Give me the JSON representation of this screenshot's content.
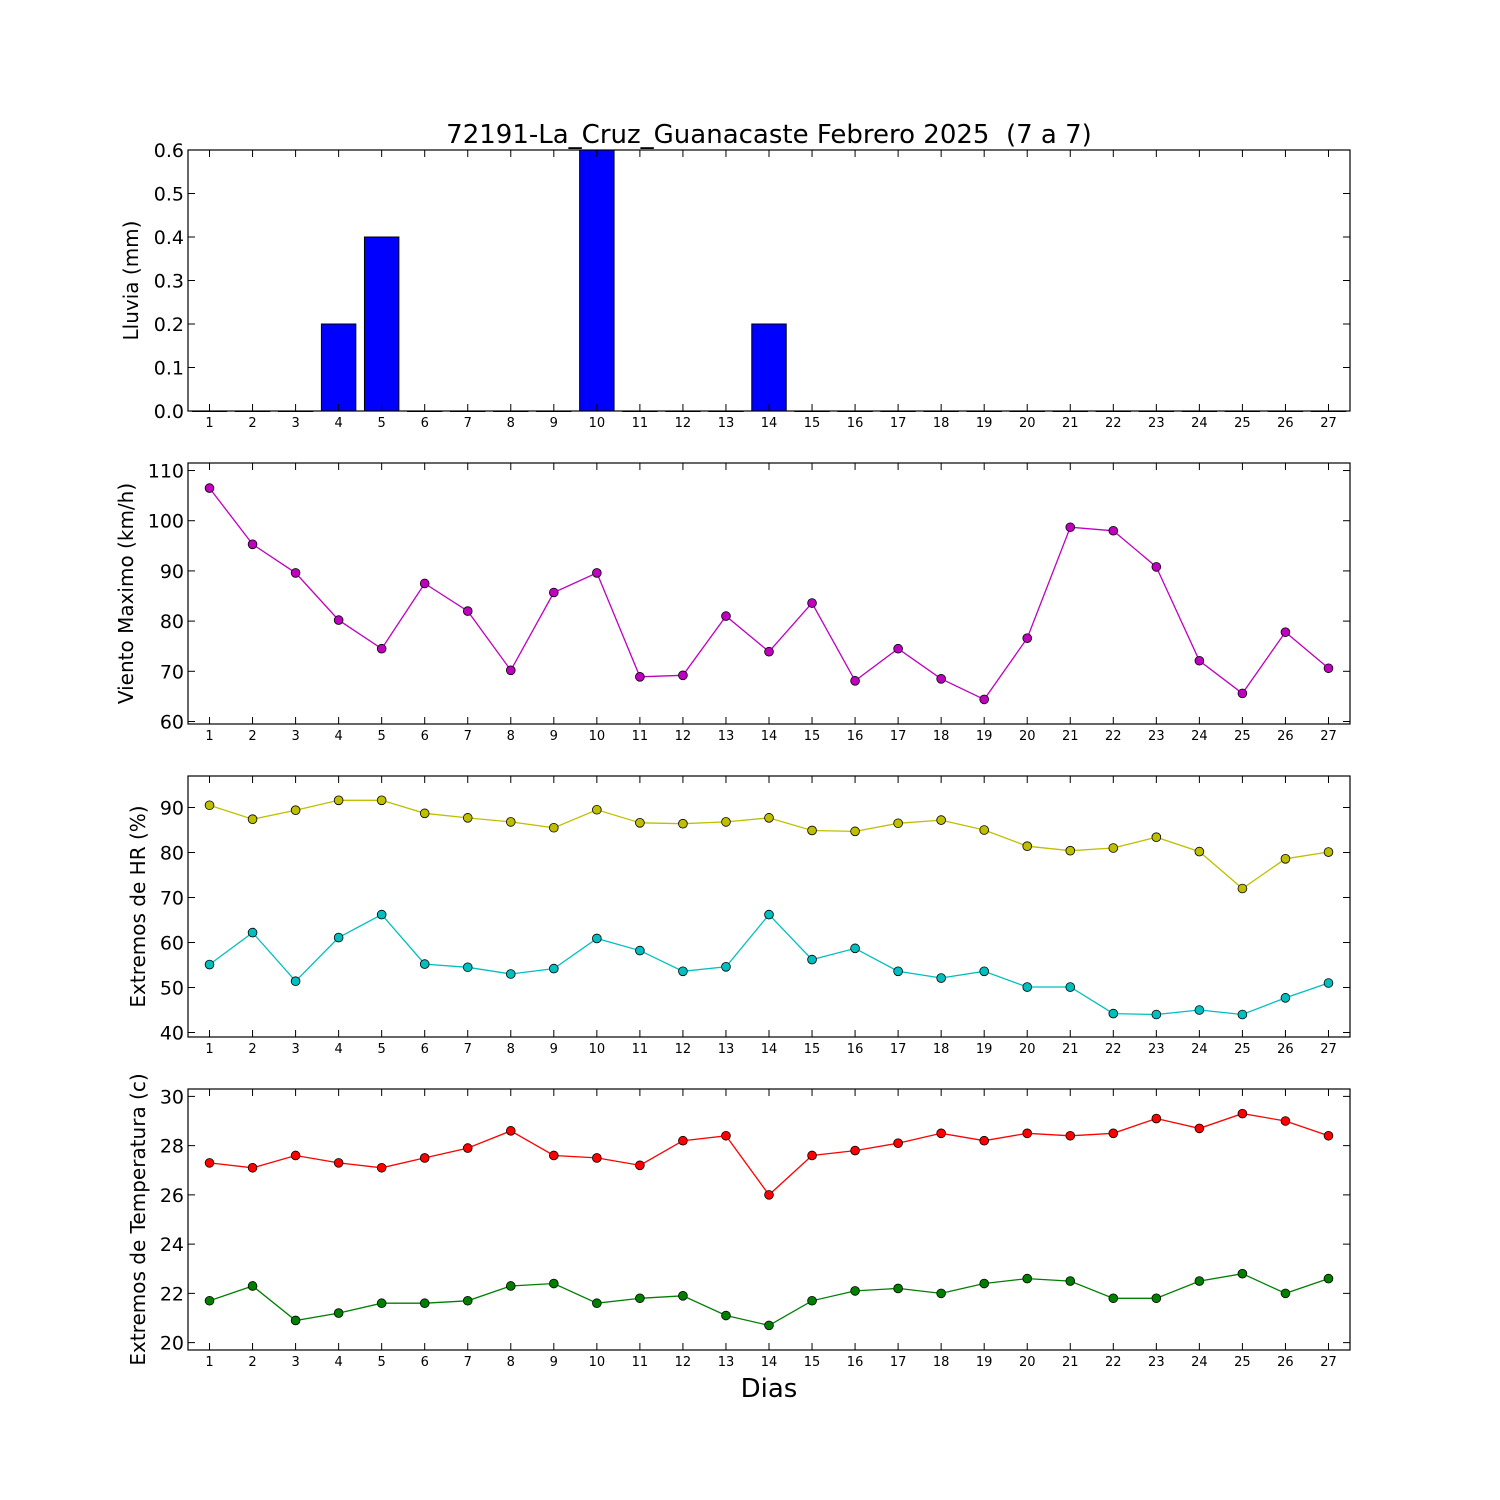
{
  "chart_data": [
    {
      "type": "bar",
      "title": "72191-La_Cruz_Guanacaste Febrero 2025  (7 a 7)",
      "xlabel": "",
      "ylabel": "Lluvia (mm)",
      "categories": [
        1,
        2,
        3,
        4,
        5,
        6,
        7,
        8,
        9,
        10,
        11,
        12,
        13,
        14,
        15,
        16,
        17,
        18,
        19,
        20,
        21,
        22,
        23,
        24,
        25,
        26,
        27
      ],
      "values": [
        0,
        0,
        0,
        0.2,
        0.4,
        0,
        0,
        0,
        0,
        0.6,
        0,
        0,
        0,
        0.2,
        0,
        0,
        0,
        0,
        0,
        0,
        0,
        0,
        0,
        0,
        0,
        0,
        0
      ],
      "ylim": [
        0,
        0.6
      ],
      "yticks": [
        "0.0",
        "0.1",
        "0.2",
        "0.3",
        "0.4",
        "0.5",
        "0.6"
      ],
      "xlim": [
        0.5,
        27.5
      ],
      "grid": false,
      "color": "#0000ff"
    },
    {
      "type": "line",
      "title": "",
      "xlabel": "",
      "ylabel": "Viento Maximo (km/h)",
      "x": [
        1,
        2,
        3,
        4,
        5,
        6,
        7,
        8,
        9,
        10,
        11,
        12,
        13,
        14,
        15,
        16,
        17,
        18,
        19,
        20,
        21,
        22,
        23,
        24,
        25,
        26,
        27
      ],
      "series": [
        {
          "color": "#bf00bf",
          "values": [
            106.5,
            95.3,
            89.6,
            80.2,
            74.5,
            87.5,
            82.0,
            70.2,
            85.7,
            89.6,
            68.9,
            69.2,
            81.0,
            73.9,
            83.6,
            68.1,
            74.5,
            68.5,
            64.4,
            76.6,
            98.7,
            98.0,
            90.8,
            72.1,
            65.6,
            77.8,
            70.6
          ]
        }
      ],
      "ylim": [
        59.5,
        111.5
      ],
      "yticks": [
        "60",
        "70",
        "80",
        "90",
        "100",
        "110"
      ],
      "xlim": [
        0.5,
        27.5
      ],
      "grid": false
    },
    {
      "type": "line",
      "title": "",
      "xlabel": "",
      "ylabel": "Extremos de HR (%)",
      "x": [
        1,
        2,
        3,
        4,
        5,
        6,
        7,
        8,
        9,
        10,
        11,
        12,
        13,
        14,
        15,
        16,
        17,
        18,
        19,
        20,
        21,
        22,
        23,
        24,
        25,
        26,
        27
      ],
      "series": [
        {
          "color": "#bfbf00",
          "values": [
            90.5,
            87.4,
            89.4,
            91.6,
            91.6,
            88.7,
            87.7,
            86.8,
            85.5,
            89.5,
            86.6,
            86.4,
            86.8,
            87.7,
            84.9,
            84.7,
            86.5,
            87.2,
            85.0,
            81.4,
            80.4,
            81.0,
            83.4,
            80.2,
            72.0,
            78.6,
            80.1
          ]
        },
        {
          "color": "#00bfbf",
          "values": [
            55.1,
            62.2,
            51.4,
            61.1,
            66.2,
            55.2,
            54.5,
            53.0,
            54.2,
            60.9,
            58.2,
            53.6,
            54.6,
            66.2,
            56.2,
            58.7,
            53.6,
            52.1,
            53.6,
            50.1,
            50.1,
            44.2,
            44.0,
            45.0,
            44.0,
            47.7,
            51.0
          ]
        }
      ],
      "ylim": [
        39,
        97
      ],
      "yticks": [
        "40",
        "50",
        "60",
        "70",
        "80",
        "90"
      ],
      "xlim": [
        0.5,
        27.5
      ],
      "grid": false
    },
    {
      "type": "line",
      "title": "",
      "xlabel": "Dias",
      "ylabel": "Extremos de Temperatura (c)",
      "x": [
        1,
        2,
        3,
        4,
        5,
        6,
        7,
        8,
        9,
        10,
        11,
        12,
        13,
        14,
        15,
        16,
        17,
        18,
        19,
        20,
        21,
        22,
        23,
        24,
        25,
        26,
        27
      ],
      "series": [
        {
          "color": "#ff0000",
          "values": [
            27.3,
            27.1,
            27.6,
            27.3,
            27.1,
            27.5,
            27.9,
            28.6,
            27.6,
            27.5,
            27.2,
            28.2,
            28.4,
            26.0,
            27.6,
            27.8,
            28.1,
            28.5,
            28.2,
            28.5,
            28.4,
            28.5,
            29.1,
            28.7,
            29.3,
            29.0,
            28.4
          ]
        },
        {
          "color": "#007f00",
          "values": [
            21.7,
            22.3,
            20.9,
            21.2,
            21.6,
            21.6,
            21.7,
            22.3,
            22.4,
            21.6,
            21.8,
            21.9,
            21.1,
            20.7,
            21.7,
            22.1,
            22.2,
            22.0,
            22.4,
            22.6,
            22.5,
            21.8,
            21.8,
            22.5,
            22.8,
            22.0,
            22.6
          ]
        }
      ],
      "ylim": [
        19.7,
        30.3
      ],
      "yticks": [
        "20",
        "22",
        "24",
        "26",
        "28",
        "30"
      ],
      "xlim": [
        0.5,
        27.5
      ],
      "grid": false
    }
  ]
}
